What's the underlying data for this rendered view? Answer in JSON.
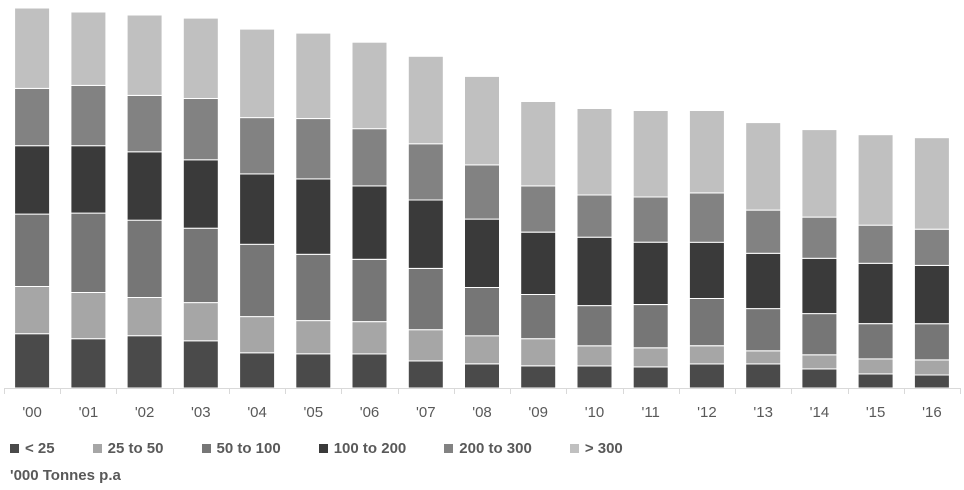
{
  "chart_data": {
    "type": "bar",
    "stacked": true,
    "categories": [
      "'00",
      "'01",
      "'02",
      "'03",
      "'04",
      "'05",
      "'06",
      "'07",
      "'08",
      "'09",
      "'10",
      "'11",
      "'12",
      "'13",
      "'14",
      "'15",
      "'16"
    ],
    "series": [
      {
        "name": "< 25",
        "color": "#4a4a4a",
        "values": [
          54,
          49,
          52,
          47,
          35,
          34,
          34,
          27,
          24,
          22,
          22,
          21,
          24,
          24,
          19,
          14,
          13
        ]
      },
      {
        "name": "25 to 50",
        "color": "#a6a6a6",
        "values": [
          47,
          46,
          38,
          38,
          36,
          33,
          32,
          31,
          28,
          27,
          20,
          19,
          18,
          13,
          14,
          15,
          15
        ]
      },
      {
        "name": "50 to 100",
        "color": "#767676",
        "values": [
          72,
          79,
          77,
          74,
          72,
          66,
          62,
          61,
          48,
          44,
          40,
          43,
          47,
          42,
          41,
          35,
          36
        ]
      },
      {
        "name": "100 to 200",
        "color": "#3a3a3a",
        "values": [
          68,
          67,
          68,
          68,
          70,
          75,
          73,
          68,
          68,
          62,
          68,
          62,
          56,
          55,
          55,
          60,
          58
        ]
      },
      {
        "name": "200 to 300",
        "color": "#828282",
        "values": [
          57,
          60,
          56,
          61,
          56,
          60,
          57,
          56,
          54,
          46,
          42,
          45,
          49,
          43,
          41,
          38,
          36
        ]
      },
      {
        "name": "> 300",
        "color": "#c0c0c0",
        "values": [
          80,
          73,
          80,
          80,
          88,
          85,
          86,
          87,
          88,
          84,
          86,
          86,
          82,
          87,
          87,
          90,
          91
        ]
      }
    ],
    "legend": "bottom",
    "grid": false
  },
  "unit_note": "'000 Tonnes p.a"
}
